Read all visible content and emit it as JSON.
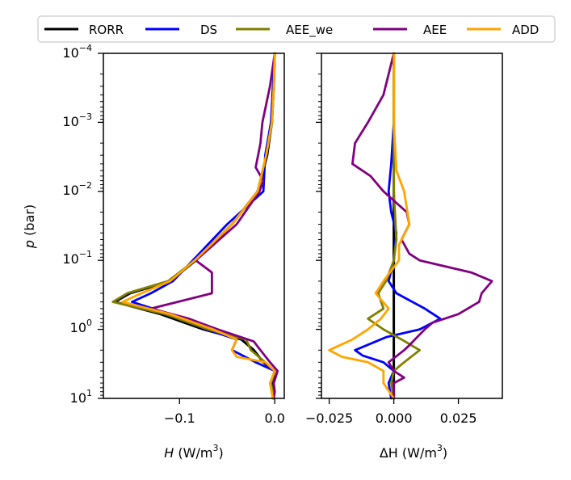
{
  "chart_data": {
    "type": "line",
    "legend": {
      "placement": "top",
      "entries": [
        {
          "name": "RORR",
          "color": "#000000"
        },
        {
          "name": "DS",
          "color": "#0000ff"
        },
        {
          "name": "AEE_we",
          "color": "#808000"
        },
        {
          "name": "AEE",
          "color": "#800080"
        },
        {
          "name": "ADD",
          "color": "#ffa500"
        }
      ]
    },
    "y_axis": {
      "label_var": "p",
      "label_unit": " (bar)",
      "scale": "log",
      "inverted": true,
      "ylim": [
        10,
        0.0001
      ],
      "ticks": [
        {
          "value": 0.0001,
          "base": "10",
          "exp": "−4"
        },
        {
          "value": 0.001,
          "base": "10",
          "exp": "−3"
        },
        {
          "value": 0.01,
          "base": "10",
          "exp": "−2"
        },
        {
          "value": 0.1,
          "base": "10",
          "exp": "−1"
        },
        {
          "value": 1,
          "base": "10",
          "exp": "0"
        },
        {
          "value": 10,
          "base": "10",
          "exp": "1"
        }
      ]
    },
    "panels": [
      {
        "id": "left",
        "xlabel_var": "H",
        "xlabel_unit": " (W/m",
        "xlabel_sup": "3",
        "xlabel_end": ")",
        "xlim": [
          -0.18,
          0.01
        ],
        "xticks": [
          {
            "value": -0.1,
            "label": "−0.1"
          },
          {
            "value": 0.0,
            "label": "0.0"
          }
        ],
        "series": [
          {
            "name": "RORR",
            "color": "#000000",
            "p": [
              0.0001,
              0.0003,
              0.001,
              0.003,
              0.01,
              0.03,
              0.1,
              0.2,
              0.3,
              0.4,
              0.6,
              1.0,
              1.4,
              2.0,
              3.0,
              4.0,
              6.0,
              10.0
            ],
            "x": [
              0.0,
              -0.001,
              -0.003,
              -0.008,
              -0.018,
              -0.045,
              -0.083,
              -0.11,
              -0.152,
              -0.168,
              -0.12,
              -0.075,
              -0.035,
              -0.022,
              -0.012,
              0.0,
              -0.003,
              -0.001
            ]
          },
          {
            "name": "DS",
            "color": "#0000ff",
            "p": [
              0.0001,
              0.0003,
              0.001,
              0.003,
              0.01,
              0.03,
              0.1,
              0.2,
              0.3,
              0.4,
              0.6,
              1.0,
              1.4,
              2.0,
              3.0,
              4.0,
              6.0,
              10.0
            ],
            "x": [
              0.0,
              -0.002,
              -0.004,
              -0.01,
              -0.012,
              -0.05,
              -0.086,
              -0.107,
              -0.13,
              -0.15,
              -0.11,
              -0.072,
              -0.04,
              -0.045,
              -0.02,
              0.0,
              -0.004,
              -0.002
            ]
          },
          {
            "name": "AEE_we",
            "color": "#808000",
            "p": [
              0.0001,
              0.0003,
              0.001,
              0.003,
              0.01,
              0.03,
              0.1,
              0.2,
              0.3,
              0.4,
              0.6,
              1.0,
              1.4,
              2.0,
              3.0,
              4.0,
              6.0,
              10.0
            ],
            "x": [
              0.0,
              -0.001,
              -0.003,
              -0.009,
              -0.018,
              -0.045,
              -0.084,
              -0.112,
              -0.155,
              -0.17,
              -0.115,
              -0.07,
              -0.03,
              -0.025,
              -0.01,
              0.0,
              -0.004,
              -0.001
            ]
          },
          {
            "name": "AEE",
            "color": "#800080",
            "p": [
              0.0001,
              0.0003,
              0.001,
              0.002,
              0.0045,
              0.007,
              0.01,
              0.03,
              0.1,
              0.15,
              0.3,
              0.5,
              0.7,
              1.0,
              1.5,
              2.0,
              3.0,
              4.0,
              6.0,
              8.0,
              10.0
            ],
            "x": [
              0.0,
              -0.005,
              -0.013,
              -0.015,
              -0.02,
              -0.012,
              -0.016,
              -0.04,
              -0.083,
              -0.066,
              -0.066,
              -0.13,
              -0.09,
              -0.06,
              -0.022,
              -0.015,
              -0.005,
              0.003,
              -0.001,
              0.0,
              -0.001
            ]
          },
          {
            "name": "ADD",
            "color": "#ffa500",
            "p": [
              0.0001,
              0.0003,
              0.001,
              0.003,
              0.01,
              0.03,
              0.1,
              0.2,
              0.3,
              0.4,
              0.6,
              1.0,
              1.4,
              2.0,
              2.5,
              3.0,
              4.0,
              6.0,
              10.0
            ],
            "x": [
              0.0,
              -0.001,
              -0.003,
              -0.009,
              -0.018,
              -0.045,
              -0.084,
              -0.11,
              -0.14,
              -0.16,
              -0.11,
              -0.065,
              -0.04,
              -0.045,
              -0.04,
              -0.01,
              0.0,
              -0.005,
              -0.002
            ]
          }
        ]
      },
      {
        "id": "right",
        "xlabel_var": "ΔH",
        "xlabel_unit": " (W/m",
        "xlabel_sup": "3",
        "xlabel_end": ")",
        "xlim": [
          -0.028,
          0.042
        ],
        "xticks": [
          {
            "value": -0.025,
            "label": "−0.025"
          },
          {
            "value": 0.0,
            "label": "0.000"
          },
          {
            "value": 0.025,
            "label": "0.025"
          }
        ],
        "series": [
          {
            "name": "RORR",
            "color": "#000000",
            "p": [
              0.0001,
              0.1,
              10.0
            ],
            "x": [
              0.0,
              0.0,
              0.0
            ]
          },
          {
            "name": "DS",
            "color": "#0000ff",
            "p": [
              0.0001,
              0.001,
              0.004,
              0.01,
              0.02,
              0.04,
              0.1,
              0.2,
              0.3,
              0.5,
              0.7,
              1.0,
              1.3,
              2.0,
              2.4,
              3.0,
              4.0,
              6.0,
              10.0
            ],
            "x": [
              0.0,
              0.0,
              -0.001,
              -0.002,
              -0.001,
              0.001,
              0.0,
              -0.002,
              0.001,
              0.012,
              0.018,
              0.01,
              -0.003,
              -0.015,
              -0.012,
              -0.004,
              0.0,
              -0.002,
              -0.001
            ]
          },
          {
            "name": "AEE_we",
            "color": "#808000",
            "p": [
              0.0001,
              0.01,
              0.05,
              0.1,
              0.2,
              0.3,
              0.5,
              0.7,
              1.0,
              1.4,
              2.0,
              3.0,
              4.0,
              6.0,
              10.0
            ],
            "x": [
              0.0,
              0.0,
              0.001,
              0.0,
              -0.003,
              -0.006,
              -0.004,
              -0.01,
              -0.004,
              0.003,
              0.01,
              0.004,
              0.0,
              -0.001,
              0.0
            ]
          },
          {
            "name": "AEE",
            "color": "#800080",
            "p": [
              0.0001,
              0.0004,
              0.001,
              0.002,
              0.004,
              0.006,
              0.01,
              0.02,
              0.03,
              0.05,
              0.08,
              0.1,
              0.15,
              0.2,
              0.3,
              0.4,
              0.6,
              0.8,
              1.0,
              1.3,
              1.7,
              2.0,
              3.0,
              4.0,
              5.0,
              6.0,
              10.0
            ],
            "x": [
              0.0,
              -0.004,
              -0.01,
              -0.015,
              -0.016,
              -0.009,
              -0.004,
              0.005,
              0.006,
              0.003,
              0.006,
              0.01,
              0.03,
              0.038,
              0.034,
              0.033,
              0.025,
              0.015,
              0.012,
              0.009,
              0.006,
              0.004,
              -0.002,
              0.0,
              0.004,
              0.0,
              0.0
            ]
          },
          {
            "name": "ADD",
            "color": "#ffa500",
            "p": [
              0.0001,
              0.001,
              0.005,
              0.01,
              0.03,
              0.06,
              0.1,
              0.2,
              0.3,
              0.5,
              0.7,
              1.0,
              1.4,
              2.0,
              2.5,
              3.0,
              4.0,
              6.0,
              10.0
            ],
            "x": [
              0.0,
              0.0,
              0.001,
              0.004,
              0.006,
              0.002,
              0.002,
              -0.004,
              -0.007,
              -0.002,
              -0.005,
              -0.01,
              -0.016,
              -0.025,
              -0.02,
              -0.01,
              -0.004,
              -0.004,
              0.0
            ]
          }
        ]
      }
    ]
  }
}
